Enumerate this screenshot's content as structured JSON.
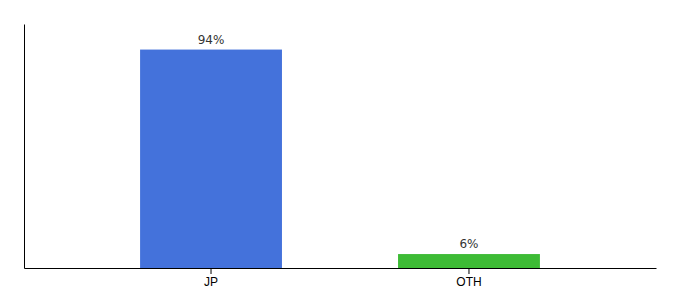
{
  "chart_data": {
    "type": "bar",
    "categories": [
      "JP",
      "OTH"
    ],
    "values": [
      94,
      6
    ],
    "value_labels": [
      "94%",
      "6%"
    ],
    "colors": [
      "#4472db",
      "#3dbb35"
    ],
    "ylim": [
      0,
      105
    ],
    "data_labels": true,
    "tick_labels": "x"
  }
}
